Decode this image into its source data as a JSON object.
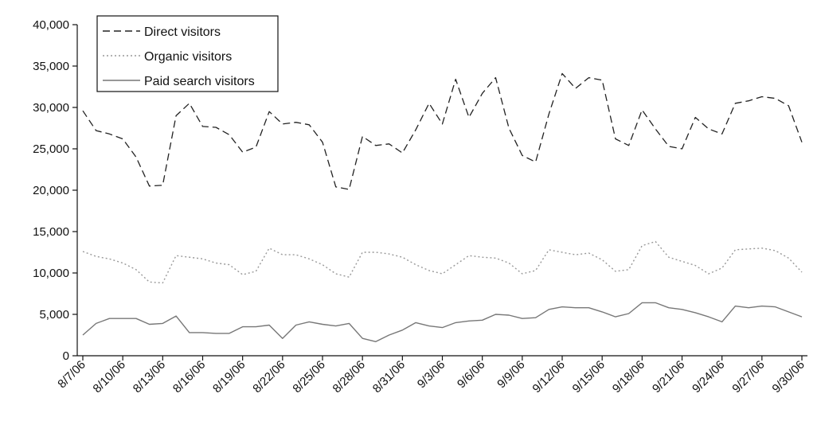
{
  "chart_data": {
    "type": "line",
    "title": "",
    "xlabel": "",
    "ylabel": "",
    "ylim": [
      0,
      40000
    ],
    "yticks": [
      0,
      5000,
      10000,
      15000,
      20000,
      25000,
      30000,
      35000,
      40000
    ],
    "ytick_labels": [
      "0",
      "5,000",
      "10,000",
      "15,000",
      "20,000",
      "25,000",
      "30,000",
      "35,000",
      "40,000"
    ],
    "x_start": "8/7/06",
    "x_end": "9/30/06",
    "xtick_labels": [
      "8/7/06",
      "8/10/06",
      "8/13/06",
      "8/16/06",
      "8/19/06",
      "8/22/06",
      "8/25/06",
      "8/28/06",
      "8/31/06",
      "9/3/06",
      "9/6/06",
      "9/9/06",
      "9/12/06",
      "9/15/06",
      "9/18/06",
      "9/21/06",
      "9/24/06",
      "9/27/06",
      "9/30/06"
    ],
    "grid": false,
    "legend_position": "top-left",
    "series": [
      {
        "name": "Direct visitors",
        "style": "dashed",
        "color": "#222222",
        "values": [
          29600,
          27200,
          26800,
          26200,
          24000,
          20500,
          20600,
          29000,
          30500,
          27700,
          27600,
          26700,
          24600,
          25200,
          29500,
          28000,
          28200,
          27900,
          25800,
          20400,
          20100,
          26500,
          25400,
          25600,
          24500,
          27300,
          30500,
          28000,
          33400,
          28800,
          31700,
          33600,
          27500,
          24200,
          23400,
          29200,
          34100,
          32300,
          33600,
          33300,
          26200,
          25400,
          29700,
          27400,
          25300,
          25000,
          28800,
          27400,
          26800,
          30500,
          30800,
          31300,
          31100,
          30200,
          25800
        ]
      },
      {
        "name": "Organic visitors",
        "style": "dotted",
        "color": "#999999",
        "values": [
          12600,
          12000,
          11700,
          11200,
          10400,
          8900,
          8800,
          12100,
          11900,
          11700,
          11200,
          11000,
          9800,
          10200,
          13000,
          12200,
          12200,
          11700,
          11000,
          9900,
          9500,
          12500,
          12500,
          12300,
          11900,
          11000,
          10300,
          9900,
          11000,
          12100,
          11900,
          11800,
          11200,
          9900,
          10300,
          12800,
          12500,
          12200,
          12400,
          11600,
          10200,
          10400,
          13300,
          13800,
          11900,
          11400,
          10900,
          9900,
          10600,
          12800,
          12900,
          13000,
          12700,
          11800,
          10100
        ]
      },
      {
        "name": "Paid search visitors",
        "style": "solid",
        "color": "#777777",
        "values": [
          2500,
          3900,
          4500,
          4500,
          4500,
          3800,
          3900,
          4800,
          2800,
          2800,
          2700,
          2700,
          3500,
          3500,
          3700,
          2100,
          3700,
          4100,
          3800,
          3600,
          3900,
          2100,
          1700,
          2500,
          3100,
          4000,
          3600,
          3400,
          4000,
          4200,
          4300,
          5000,
          4900,
          4500,
          4600,
          5600,
          5900,
          5800,
          5800,
          5300,
          4700,
          5100,
          6400,
          6400,
          5800,
          5600,
          5200,
          4700,
          4100,
          6000,
          5800,
          6000,
          5900,
          5300,
          4700
        ]
      }
    ]
  }
}
